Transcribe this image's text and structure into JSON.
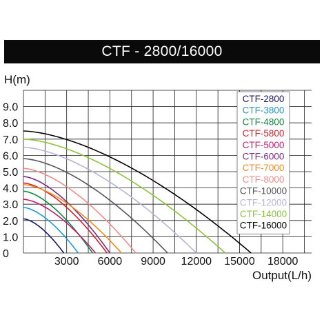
{
  "chart_data": {
    "type": "line",
    "title": "CTF - 2800/16000",
    "xlabel": "Output(L/h)",
    "ylabel": "H(m)",
    "xlim": [
      0,
      20000
    ],
    "ylim": [
      0,
      10
    ],
    "xticks": [
      {
        "value": 3000,
        "label": "3000"
      },
      {
        "value": 6000,
        "label": "6000"
      },
      {
        "value": 9000,
        "label": "9000"
      },
      {
        "value": 12000,
        "label": "12000"
      },
      {
        "value": 15000,
        "label": "15000"
      },
      {
        "value": 18000,
        "label": "18000"
      }
    ],
    "yticks": [
      {
        "value": 0,
        "label": "0"
      },
      {
        "value": 1,
        "label": "1.0"
      },
      {
        "value": 2,
        "label": "2.0"
      },
      {
        "value": 3,
        "label": "3.0"
      },
      {
        "value": 4,
        "label": "4.0"
      },
      {
        "value": 5,
        "label": "5.0"
      },
      {
        "value": 6,
        "label": "6.0"
      },
      {
        "value": 7,
        "label": "7.0"
      },
      {
        "value": 8,
        "label": "8.0"
      },
      {
        "value": 9,
        "label": "9.0"
      }
    ],
    "grid": true,
    "legend_position": "top-right",
    "series": [
      {
        "name": "CTF-2800",
        "color": "#1a1464",
        "head_max": 2.1,
        "flow_max": 2800
      },
      {
        "name": "CTF-3800",
        "color": "#1c9ad6",
        "head_max": 2.8,
        "flow_max": 3800
      },
      {
        "name": "CTF-4800",
        "color": "#0a8a3c",
        "head_max": 3.8,
        "flow_max": 4800
      },
      {
        "name": "CTF-5800",
        "color": "#d4202a",
        "head_max": 4.3,
        "flow_max": 5800
      },
      {
        "name": "CTF-5000",
        "color": "#c8186e",
        "head_max": 3.3,
        "flow_max": 5000
      },
      {
        "name": "CTF-6000",
        "color": "#7a2a82",
        "head_max": 4.7,
        "flow_max": 6000
      },
      {
        "name": "CTF-7000",
        "color": "#f08a1c",
        "head_max": 4.2,
        "flow_max": 6800
      },
      {
        "name": "CTF-8000",
        "color": "#f08a8a",
        "head_max": 5.2,
        "flow_max": 7800
      },
      {
        "name": "CTF-10000",
        "color": "#555555",
        "head_max": 5.8,
        "flow_max": 10000
      },
      {
        "name": "CTF-12000",
        "color": "#b4b4d8",
        "head_max": 6.5,
        "flow_max": 12000
      },
      {
        "name": "CTF-14000",
        "color": "#8cc23c",
        "head_max": 7.0,
        "flow_max": 14000
      },
      {
        "name": "CTF-16000",
        "color": "#000000",
        "head_max": 7.5,
        "flow_max": 15800
      }
    ]
  }
}
